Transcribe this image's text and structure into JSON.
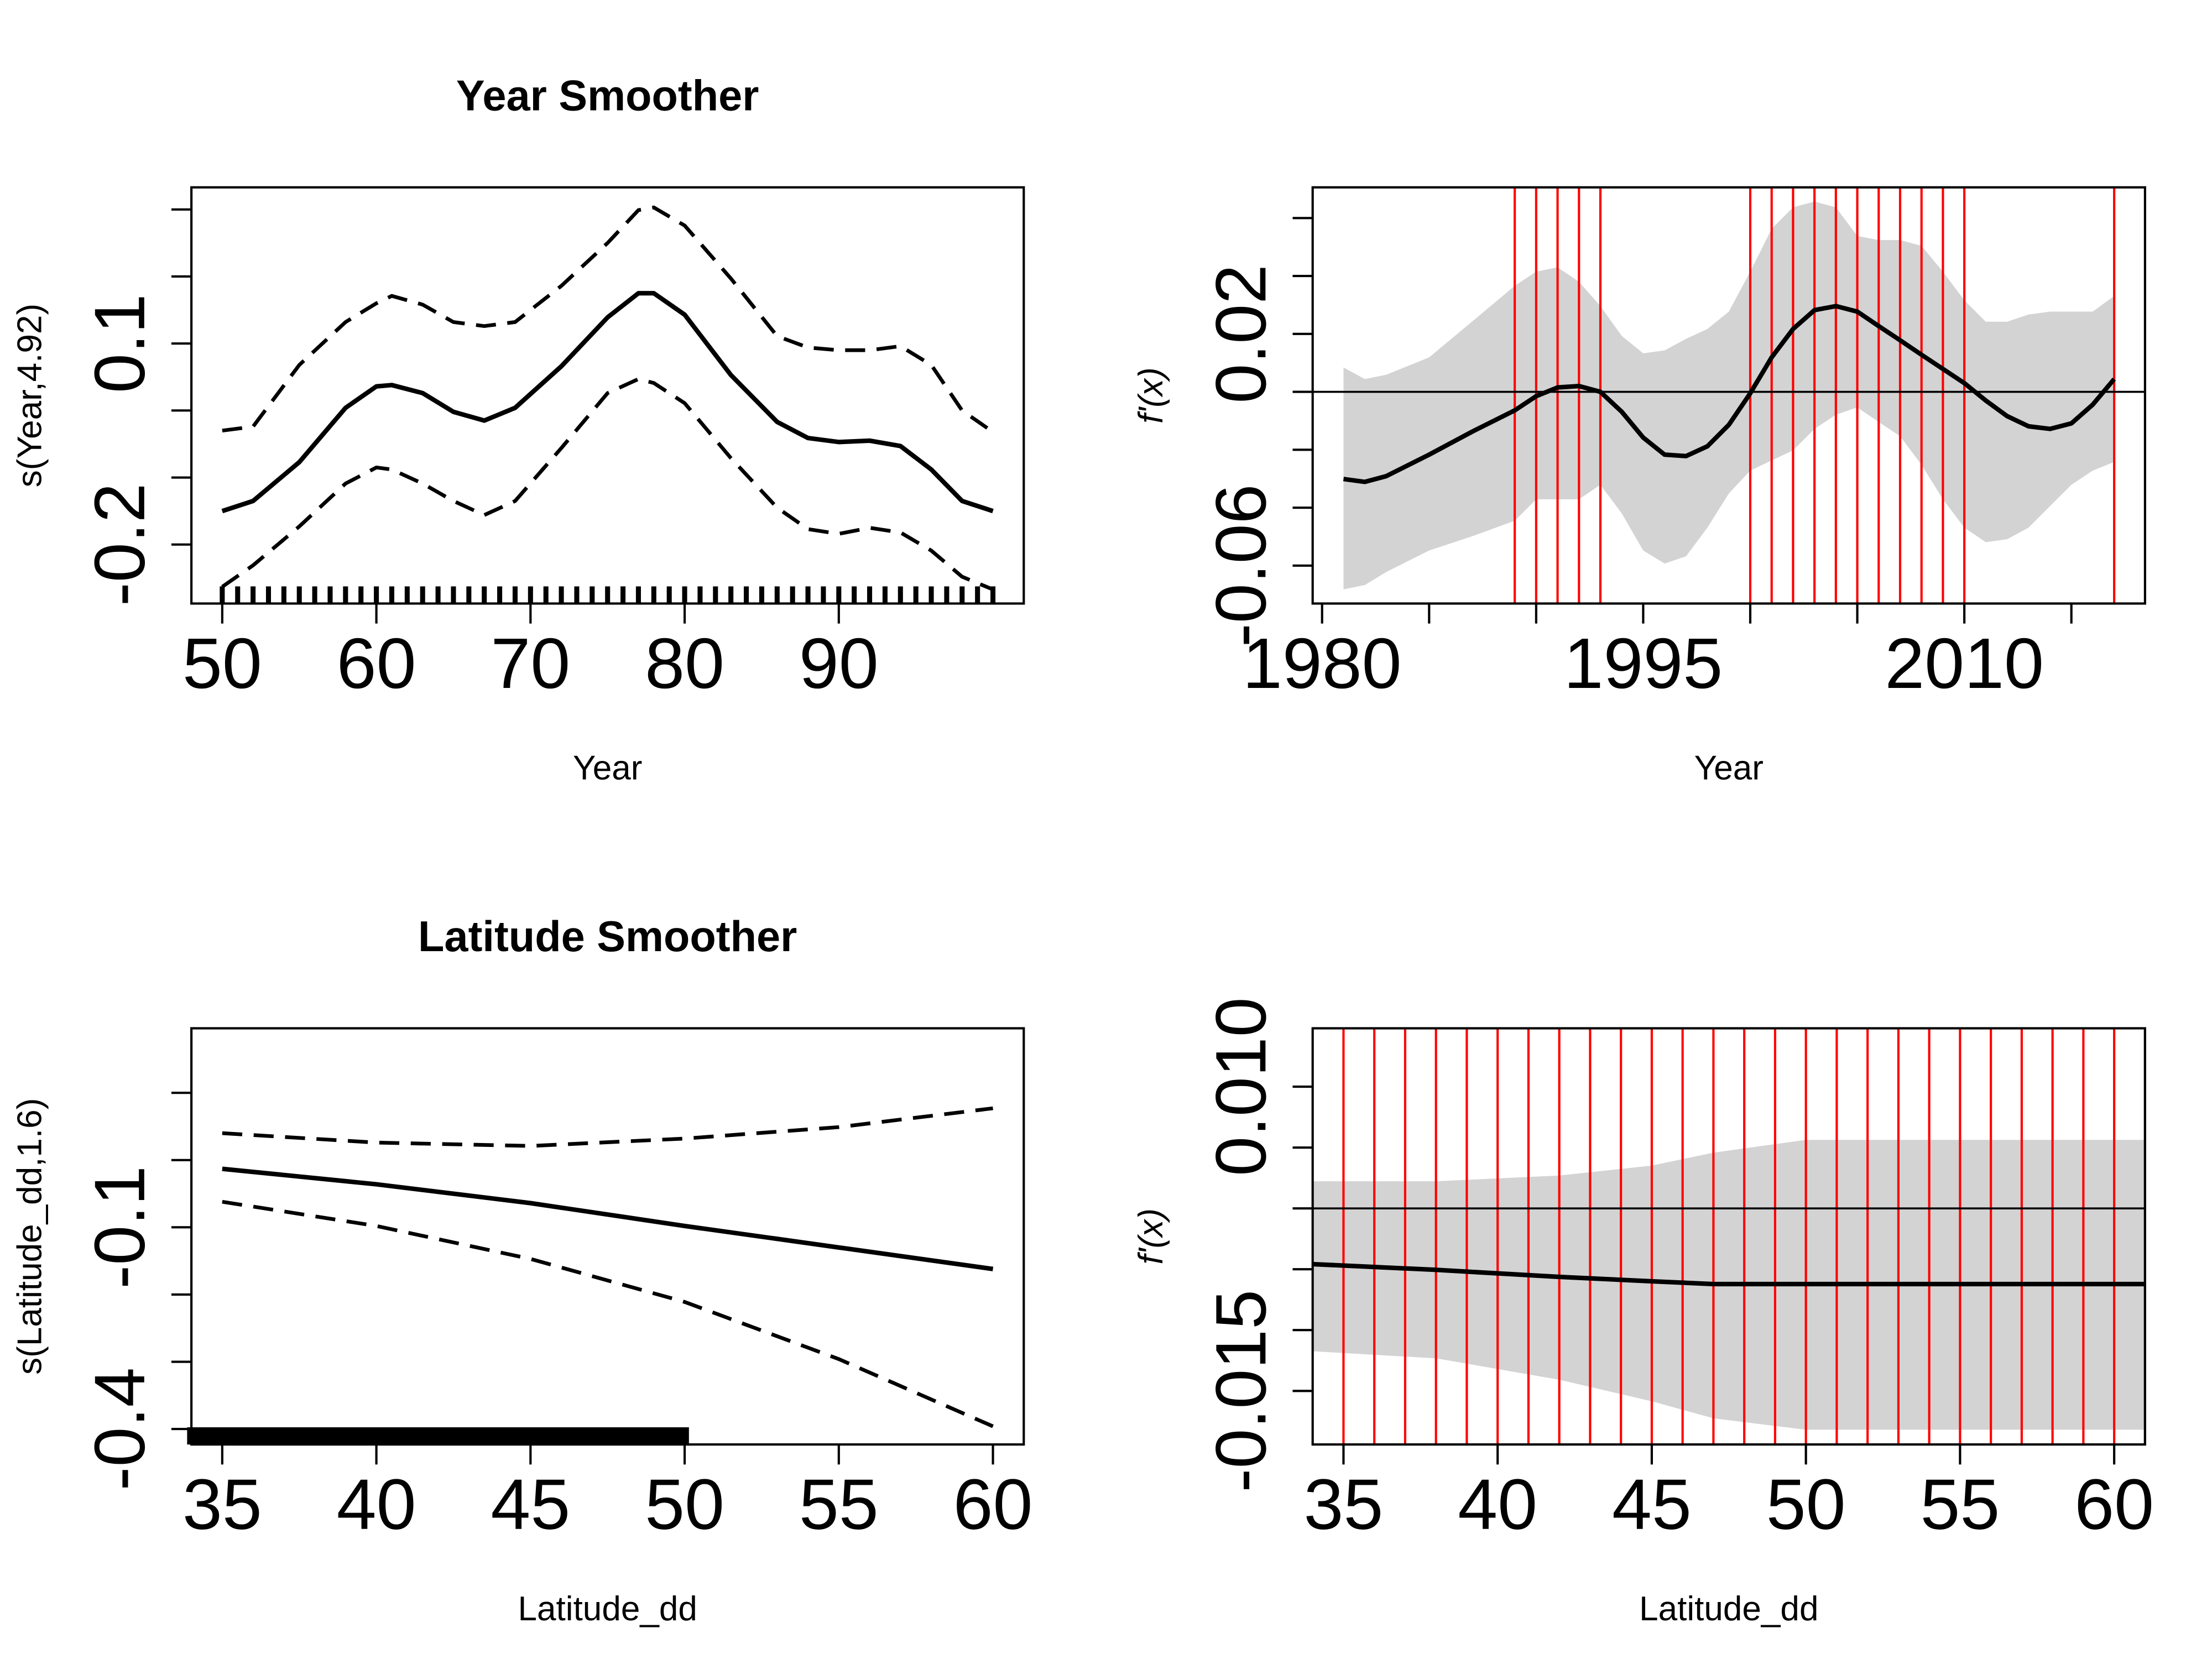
{
  "chart_data": [
    {
      "type": "smooth",
      "title": "Year Smoother",
      "xlabel": "Year",
      "ylabel": "s(Year,4.92)",
      "color": "#000000",
      "xlim": [
        48,
        102
      ],
      "ylim": [
        -0.288,
        0.333
      ],
      "xticks": [
        50,
        60,
        70,
        80,
        90
      ],
      "yticks": [
        -0.2,
        0.1
      ],
      "yticks_minor": [
        -0.1,
        0,
        0.2,
        0.3
      ],
      "x": [
        50,
        52,
        55,
        58,
        60,
        61,
        63,
        65,
        67,
        69,
        72,
        75,
        77,
        78,
        80,
        83,
        86,
        88,
        90,
        92,
        94,
        96,
        98,
        100
      ],
      "values": [
        -0.15,
        -0.135,
        -0.077,
        0.004,
        0.036,
        0.038,
        0.026,
        -0.002,
        -0.015,
        0.004,
        0.066,
        0.139,
        0.175,
        0.175,
        0.143,
        0.053,
        -0.017,
        -0.041,
        -0.047,
        -0.045,
        -0.053,
        -0.088,
        -0.135,
        -0.15
      ],
      "band_upper": [
        -0.03,
        -0.024,
        0.068,
        0.132,
        0.16,
        0.171,
        0.158,
        0.132,
        0.126,
        0.132,
        0.186,
        0.25,
        0.299,
        0.303,
        0.276,
        0.197,
        0.111,
        0.094,
        0.09,
        0.09,
        0.096,
        0.068,
        0.0,
        -0.032
      ],
      "band_lower": [
        -0.263,
        -0.231,
        -0.173,
        -0.109,
        -0.085,
        -0.088,
        -0.109,
        -0.135,
        -0.156,
        -0.135,
        -0.056,
        0.026,
        0.047,
        0.041,
        0.011,
        -0.071,
        -0.145,
        -0.177,
        -0.184,
        -0.175,
        -0.182,
        -0.209,
        -0.248,
        -0.267
      ],
      "rug": [
        50,
        51,
        52,
        53,
        54,
        55,
        56,
        57,
        58,
        59,
        60,
        61,
        62,
        63,
        64,
        65,
        66,
        67,
        68,
        69,
        70,
        71,
        72,
        73,
        74,
        75,
        76,
        77,
        78,
        79,
        80,
        81,
        82,
        83,
        84,
        85,
        86,
        87,
        88,
        89,
        90,
        91,
        92,
        93,
        94,
        95,
        96,
        97,
        98,
        99,
        100
      ]
    },
    {
      "type": "derivative",
      "xlabel": "Year",
      "ylabel": "f'(x)",
      "color": "#000000",
      "band_color": "#d3d3d3",
      "vline_color": "#ff0000",
      "xlim": [
        1979.56,
        2018.44
      ],
      "ylim": [
        -0.0731,
        0.0706
      ],
      "xticks": [
        1980,
        1995,
        2010
      ],
      "xticks_minor": [
        1985,
        1990,
        2000,
        2005,
        2015
      ],
      "yticks": [
        0.02,
        -0.06
      ],
      "yticks_minor": [
        0.06,
        0.04,
        0,
        -0.02,
        -0.04
      ],
      "hline": 0,
      "vlines": [
        1989,
        1990,
        1991,
        1992,
        1993,
        2000,
        2001,
        2002,
        2003,
        2004,
        2005,
        2006,
        2007,
        2008,
        2009,
        2010,
        2017
      ],
      "x": [
        1981,
        1982,
        1983,
        1985,
        1987,
        1989,
        1990,
        1991,
        1992,
        1993,
        1994,
        1995,
        1996,
        1997,
        1998,
        1999,
        2000,
        2001,
        2002,
        2003,
        2004,
        2005,
        2006,
        2007,
        2008,
        2009,
        2010,
        2011,
        2012,
        2013,
        2014,
        2015,
        2016,
        2017
      ],
      "values": [
        -0.0301,
        -0.0311,
        -0.0291,
        -0.0217,
        -0.0138,
        -0.0064,
        -0.0015,
        0.0015,
        0.002,
        0,
        -0.0069,
        -0.0158,
        -0.0217,
        -0.0222,
        -0.0188,
        -0.0114,
        -0.0005,
        0.0119,
        0.0217,
        0.0282,
        0.0296,
        0.0277,
        0.0227,
        0.0178,
        0.0128,
        0.0079,
        0.003,
        -0.003,
        -0.0084,
        -0.0119,
        -0.0128,
        -0.0109,
        -0.0044,
        0.0044
      ],
      "band_upper": [
        0.0084,
        0.0044,
        0.0059,
        0.0119,
        0.0242,
        0.0366,
        0.0415,
        0.043,
        0.038,
        0.0296,
        0.0193,
        0.0133,
        0.0143,
        0.0183,
        0.0217,
        0.0277,
        0.0415,
        0.0563,
        0.0637,
        0.0657,
        0.0637,
        0.0538,
        0.0524,
        0.0524,
        0.0504,
        0.0415,
        0.0316,
        0.0242,
        0.0242,
        0.0267,
        0.0277,
        0.0277,
        0.0277,
        0.0331
      ],
      "band_lower": [
        -0.0682,
        -0.0667,
        -0.0622,
        -0.0548,
        -0.0499,
        -0.0445,
        -0.0371,
        -0.0371,
        -0.0371,
        -0.0321,
        -0.042,
        -0.0548,
        -0.0593,
        -0.0568,
        -0.0469,
        -0.0351,
        -0.0272,
        -0.0237,
        -0.0202,
        -0.0128,
        -0.0079,
        -0.0054,
        -0.0104,
        -0.0153,
        -0.0252,
        -0.0371,
        -0.0469,
        -0.0519,
        -0.0509,
        -0.0469,
        -0.0395,
        -0.0321,
        -0.0272,
        -0.0242
      ]
    },
    {
      "type": "smooth",
      "title": "Latitude Smoother",
      "xlabel": "Latitude_dd",
      "ylabel": "s(Latitude_dd,1.6)",
      "color": "#000000",
      "xlim": [
        34,
        61
      ],
      "ylim": [
        -0.423,
        0.196
      ],
      "xticks": [
        35,
        40,
        45,
        50,
        55,
        60
      ],
      "yticks": [
        -0.4,
        -0.1
      ],
      "yticks_minor": [
        -0.3,
        -0.2,
        0,
        0.1
      ],
      "x": [
        35,
        40,
        45,
        50,
        55,
        60
      ],
      "values": [
        -0.013,
        -0.036,
        -0.064,
        -0.098,
        -0.13,
        -0.162
      ],
      "band_upper": [
        0.04,
        0.026,
        0.021,
        0.032,
        0.049,
        0.077
      ],
      "band_lower": [
        -0.062,
        -0.098,
        -0.147,
        -0.211,
        -0.296,
        -0.396
      ],
      "rug": [
        34,
        34.25,
        34.5,
        34.75,
        35,
        35.25,
        35.5,
        35.75,
        36,
        36.25,
        36.5,
        36.75,
        37,
        37.25,
        37.5,
        37.75,
        38,
        38.25,
        38.5,
        38.75,
        39,
        39.25,
        39.5,
        39.75,
        40,
        40.25,
        40.5,
        40.75,
        41,
        41.25,
        41.5,
        41.75,
        42,
        42.25,
        42.5,
        42.75,
        43,
        43.25,
        43.5,
        43.75,
        44,
        44.25,
        44.5,
        44.75,
        45,
        45.25,
        45.5,
        45.75,
        46,
        46.25,
        46.5,
        46.75,
        47,
        47.25,
        47.5,
        47.75,
        48,
        48.25,
        48.5,
        48.75,
        49,
        49.25,
        49.5,
        49.75,
        50
      ]
    },
    {
      "type": "derivative",
      "xlabel": "Latitude_dd",
      "ylabel": "f'(x)",
      "color": "#000000",
      "band_color": "#d3d3d3",
      "vline_color": "#ff0000",
      "xlim": [
        34,
        61
      ],
      "ylim": [
        -0.0194,
        0.0148
      ],
      "xticks": [
        35,
        40,
        45,
        50,
        55,
        60
      ],
      "yticks": [
        {
          "value": 0.01,
          "label": "0.010"
        },
        -0.015
      ],
      "yticks_minor": [
        0.005,
        0,
        -0.005,
        -0.01
      ],
      "hline": 0,
      "vlines": [
        35,
        36,
        37,
        38,
        39,
        40,
        41,
        42,
        43,
        44,
        45,
        46,
        47,
        48,
        49,
        50,
        51,
        52,
        53,
        54,
        55,
        56,
        57,
        58,
        59,
        60,
        61
      ],
      "x": [
        34,
        38,
        42,
        45,
        47,
        50,
        55,
        61
      ],
      "values": [
        -0.00458,
        -0.00505,
        -0.00563,
        -0.00599,
        -0.00622,
        -0.00622,
        -0.00622,
        -0.00622
      ],
      "band_upper": [
        0.00223,
        0.00223,
        0.0027,
        0.00352,
        0.00458,
        0.00563,
        0.00563,
        0.00563
      ],
      "band_lower": [
        -0.01174,
        -0.01232,
        -0.01408,
        -0.01585,
        -0.01725,
        -0.01819,
        -0.01819,
        -0.01819
      ]
    }
  ]
}
